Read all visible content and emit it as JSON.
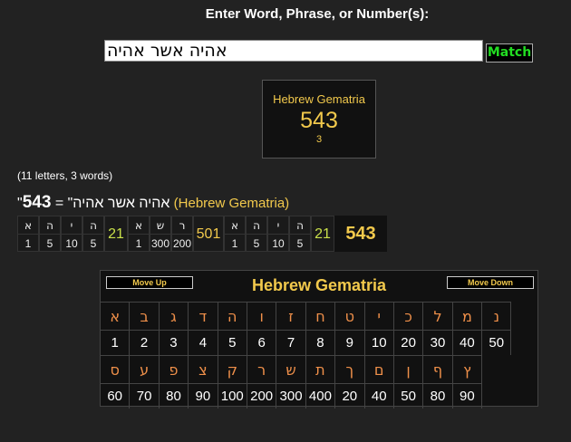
{
  "prompt": "Enter Word, Phrase, or Number(s):",
  "input": {
    "value": "אהיה אשר אהיה"
  },
  "match_label": "Match",
  "result": {
    "cipher": "Hebrew Gematria",
    "value": "543",
    "words": "3"
  },
  "counts": "(11 letters, 3 words)",
  "equation": {
    "phrase": "\"אהיה אשר אהיה\"",
    "eq": " = ",
    "total": "543",
    "cipher": " (Hebrew Gematria)"
  },
  "breakdown": {
    "words": [
      {
        "letters": [
          [
            "א",
            "1"
          ],
          [
            "ה",
            "5"
          ],
          [
            "י",
            "10"
          ],
          [
            "ה",
            "5"
          ]
        ],
        "sum": "21"
      },
      {
        "letters": [
          [
            "א",
            "1"
          ],
          [
            "ש",
            "300"
          ],
          [
            "ר",
            "200"
          ]
        ],
        "sum": "501"
      },
      {
        "letters": [
          [
            "א",
            "1"
          ],
          [
            "ה",
            "5"
          ],
          [
            "י",
            "10"
          ],
          [
            "ה",
            "5"
          ]
        ],
        "sum": "21"
      }
    ],
    "total": "543"
  },
  "chart": {
    "title": "Hebrew Gematria",
    "move_up": "Move Up",
    "move_down": "Move Down",
    "rows": [
      {
        "letters": [
          "א",
          "ב",
          "ג",
          "ד",
          "ה",
          "ו",
          "ז",
          "ח",
          "ט",
          "י",
          "כ",
          "ל",
          "מ",
          "נ"
        ],
        "values": [
          "1",
          "2",
          "3",
          "4",
          "5",
          "6",
          "7",
          "8",
          "9",
          "10",
          "20",
          "30",
          "40",
          "50"
        ]
      },
      {
        "letters": [
          "ס",
          "ע",
          "פ",
          "צ",
          "ק",
          "ר",
          "ש",
          "ת",
          "ך",
          "ם",
          "ן",
          "ף",
          "ץ"
        ],
        "values": [
          "60",
          "70",
          "80",
          "90",
          "100",
          "200",
          "300",
          "400",
          "20",
          "40",
          "50",
          "80",
          "90"
        ]
      }
    ]
  },
  "colors": {
    "background": "#222222",
    "accent": "#f2c94c",
    "letter": "#f0904a",
    "match": "#22dd22"
  }
}
